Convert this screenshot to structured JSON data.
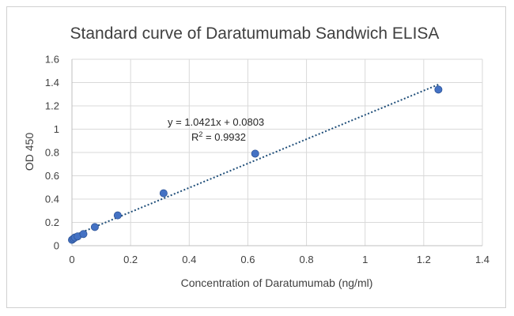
{
  "chart_data": {
    "type": "scatter",
    "title": "Standard curve of Daratumumab Sandwich ELISA",
    "xlabel": "Concentration of Daratumumab (ng/ml)",
    "ylabel": "OD 450",
    "xlim": [
      0,
      1.4
    ],
    "ylim": [
      0,
      1.6
    ],
    "x_ticks": [
      "0",
      "0.2",
      "0.4",
      "0.6",
      "0.8",
      "1",
      "1.2",
      "1.4"
    ],
    "y_ticks": [
      "0",
      "0.2",
      "0.4",
      "0.6",
      "0.8",
      "1",
      "1.2",
      "1.4",
      "1.6"
    ],
    "grid": true,
    "marker_color": "#4472c4",
    "trendline_color": "#1f4e79",
    "points": [
      {
        "x": 0,
        "y": 0.05
      },
      {
        "x": 0.0049,
        "y": 0.06
      },
      {
        "x": 0.0098,
        "y": 0.07
      },
      {
        "x": 0.0195,
        "y": 0.08
      },
      {
        "x": 0.039,
        "y": 0.1
      },
      {
        "x": 0.078,
        "y": 0.16
      },
      {
        "x": 0.156,
        "y": 0.26
      },
      {
        "x": 0.3125,
        "y": 0.45
      },
      {
        "x": 0.625,
        "y": 0.79
      },
      {
        "x": 1.25,
        "y": 1.34
      }
    ],
    "trendline": {
      "type": "linear",
      "slope": 1.0421,
      "intercept": 0.0803,
      "x_range": [
        0,
        1.25
      ],
      "equation": "y = 1.0421x + 0.0803",
      "r_squared_prefix": "R",
      "r_squared_sup": "2",
      "r_squared_value": " = 0.9932"
    }
  }
}
